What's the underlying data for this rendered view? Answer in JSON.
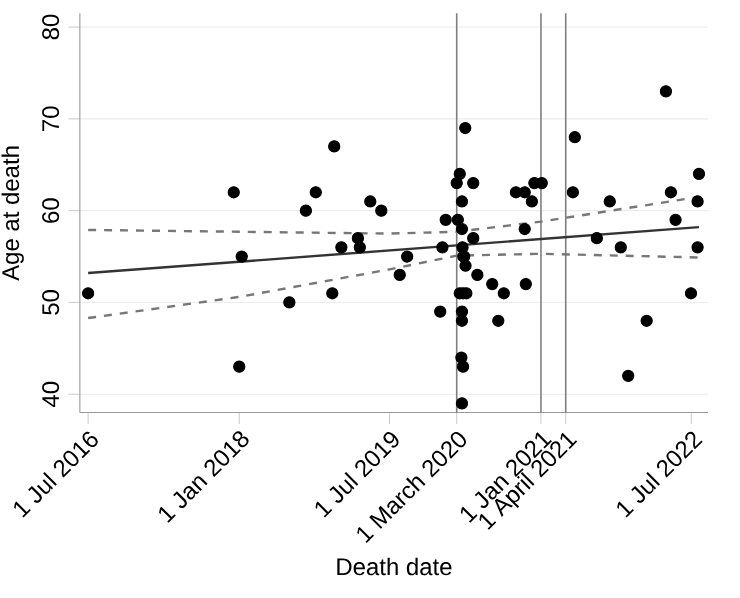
{
  "chart_data": {
    "type": "scatter",
    "xlabel": "Death date",
    "ylabel": "Age at death",
    "xlim": [
      "2016-06-01",
      "2022-08-31"
    ],
    "ylim": [
      38,
      81.5
    ],
    "xticks": [
      {
        "value": "2016-07-01",
        "label": "1 Jul 2016"
      },
      {
        "value": "2018-01-01",
        "label": "1 Jan 2018"
      },
      {
        "value": "2019-07-01",
        "label": "1 Jul 2019"
      },
      {
        "value": "2020-03-01",
        "label": "1 March 2020"
      },
      {
        "value": "2021-01-01",
        "label": "1 Jan 2021"
      },
      {
        "value": "2021-04-01",
        "label": "1 April 2021"
      },
      {
        "value": "2022-07-01",
        "label": "1 Jul 2022"
      }
    ],
    "yticks": [
      40,
      50,
      60,
      70,
      80
    ],
    "grid": "y",
    "marker": "circle",
    "ref_lines": [
      {
        "axis": "x",
        "value": "2020-03-01",
        "label": null,
        "color": "#7f7f7f"
      },
      {
        "axis": "x",
        "value": "2021-01-01",
        "label": null,
        "color": "#7f7f7f"
      },
      {
        "axis": "x",
        "value": "2021-04-01",
        "label": null,
        "color": "#7f7f7f"
      }
    ],
    "series": [
      {
        "color": "#000000",
        "x": [
          "2016-07-01",
          "2017-12-12",
          "2018-01-10",
          "2018-08-31",
          "2018-10-06",
          "2018-12-12",
          "2019-01-07",
          "2019-03-08",
          "2019-03-15",
          "2019-04-22",
          "2019-06-01",
          "2018-12-05",
          "2019-08-07",
          "2019-09-03",
          "2020-01-09",
          "2020-01-21",
          "2020-03-01",
          "2020-03-12",
          "2020-04-01",
          "2020-03-20",
          "2020-03-05",
          "2020-03-20",
          "2020-04-30",
          "2020-04-30",
          "2020-03-22",
          "2020-03-25",
          "2020-03-28",
          "2020-04-02",
          "2020-05-15",
          "2020-07-08",
          "2020-08-19",
          "2020-03-12",
          "2020-03-24",
          "2020-04-05",
          "2020-10-02",
          "2020-11-03",
          "2020-11-03",
          "2020-11-29",
          "2020-12-08",
          "2021-01-04",
          "2020-11-07",
          "2021-04-27",
          "2021-05-04",
          "2021-07-23",
          "2021-09-08",
          "2021-10-18",
          "2022-03-31",
          "2022-04-18",
          "2022-05-05",
          "2022-06-30",
          "2022-07-29",
          "2022-07-24",
          "2022-07-24",
          "2018-01-01",
          "2018-07-02",
          "2020-01-01",
          "2020-03-20",
          "2020-03-20",
          "2020-03-18",
          "2020-03-24",
          "2020-03-20",
          "2020-07-30",
          "2021-11-14",
          "2022-01-20"
        ],
        "values": [
          51,
          62,
          55,
          60,
          62,
          67,
          56,
          57,
          56,
          61,
          60,
          51,
          53,
          55,
          56,
          59,
          63,
          64,
          69,
          61,
          59,
          58,
          63,
          57,
          56,
          55,
          55,
          54,
          53,
          52,
          51,
          51,
          51,
          51,
          62,
          62,
          58,
          61,
          63,
          63,
          52,
          62,
          68,
          57,
          61,
          56,
          73,
          62,
          59,
          51,
          64,
          61,
          56,
          43,
          50,
          49,
          49,
          48,
          44,
          43,
          39,
          48,
          42,
          48
        ]
      },
      {
        "type": "line",
        "color": "#333333",
        "line_style": "solid",
        "marker": "none",
        "x": [
          "2016-07-01",
          "2022-07-29"
        ],
        "values": [
          53.2,
          58.2
        ]
      },
      {
        "type": "line",
        "color": "#777777",
        "line_style": "dashed",
        "marker": "none",
        "x": [
          "2016-07-01",
          "2018-01-01",
          "2019-07-01",
          "2020-03-01",
          "2021-01-01",
          "2022-07-29"
        ],
        "values": [
          57.9,
          57.7,
          57.5,
          57.7,
          58.8,
          61.5
        ]
      },
      {
        "type": "line",
        "color": "#777777",
        "line_style": "dashed",
        "marker": "none",
        "x": [
          "2016-07-01",
          "2018-01-01",
          "2019-07-01",
          "2020-03-01",
          "2021-01-01",
          "2022-07-29"
        ],
        "values": [
          48.3,
          50.6,
          53.6,
          55.1,
          55.3,
          54.9
        ]
      }
    ]
  }
}
